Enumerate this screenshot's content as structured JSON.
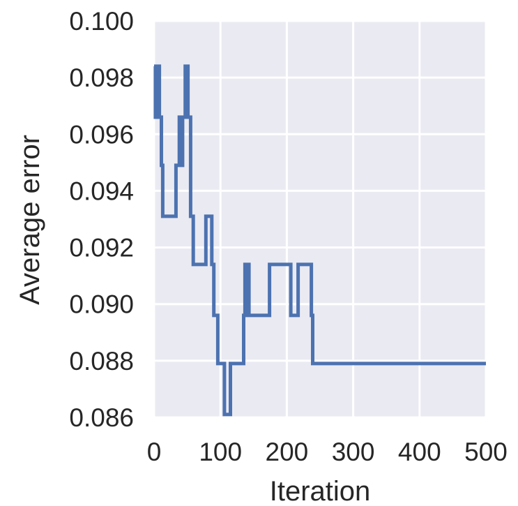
{
  "chart_data": {
    "type": "line",
    "title": "",
    "xlabel": "Iteration",
    "ylabel": "Average error",
    "xlim": [
      0,
      500
    ],
    "ylim": [
      0.086,
      0.1
    ],
    "x_ticks": [
      "0",
      "100",
      "200",
      "300",
      "400",
      "500"
    ],
    "y_ticks": [
      "0.100",
      "0.098",
      "0.096",
      "0.094",
      "0.092",
      "0.090",
      "0.088",
      "0.086"
    ],
    "grid": true,
    "background_color": "#EAEAF2",
    "grid_color": "#FFFFFF",
    "series": [
      {
        "color": "#4C72B0",
        "points": [
          [
            0,
            0.0984
          ],
          [
            2,
            0.0984
          ],
          [
            2,
            0.0966
          ],
          [
            5,
            0.0966
          ],
          [
            5,
            0.0984
          ],
          [
            8,
            0.0984
          ],
          [
            8,
            0.0966
          ],
          [
            11,
            0.0966
          ],
          [
            11,
            0.0949
          ],
          [
            13,
            0.0949
          ],
          [
            13,
            0.0931
          ],
          [
            33,
            0.0931
          ],
          [
            33,
            0.0949
          ],
          [
            38,
            0.0949
          ],
          [
            38,
            0.0966
          ],
          [
            40,
            0.0966
          ],
          [
            40,
            0.0949
          ],
          [
            43,
            0.0949
          ],
          [
            43,
            0.0966
          ],
          [
            47,
            0.0966
          ],
          [
            47,
            0.0984
          ],
          [
            51,
            0.0984
          ],
          [
            51,
            0.0966
          ],
          [
            55,
            0.0966
          ],
          [
            55,
            0.0931
          ],
          [
            59,
            0.0931
          ],
          [
            59,
            0.0914
          ],
          [
            78,
            0.0914
          ],
          [
            78,
            0.0931
          ],
          [
            87,
            0.0931
          ],
          [
            87,
            0.0914
          ],
          [
            90,
            0.0914
          ],
          [
            90,
            0.0896
          ],
          [
            96,
            0.0896
          ],
          [
            96,
            0.0879
          ],
          [
            106,
            0.0879
          ],
          [
            106,
            0.0861
          ],
          [
            115,
            0.0861
          ],
          [
            115,
            0.0879
          ],
          [
            135,
            0.0879
          ],
          [
            135,
            0.0896
          ],
          [
            137,
            0.0896
          ],
          [
            137,
            0.0914
          ],
          [
            139,
            0.0914
          ],
          [
            139,
            0.0896
          ],
          [
            141,
            0.0896
          ],
          [
            141,
            0.0914
          ],
          [
            143,
            0.0914
          ],
          [
            143,
            0.0896
          ],
          [
            174,
            0.0896
          ],
          [
            174,
            0.0914
          ],
          [
            206,
            0.0914
          ],
          [
            206,
            0.0896
          ],
          [
            217,
            0.0896
          ],
          [
            217,
            0.0914
          ],
          [
            237,
            0.0914
          ],
          [
            237,
            0.0896
          ],
          [
            239,
            0.0896
          ],
          [
            239,
            0.0879
          ],
          [
            500,
            0.0879
          ]
        ]
      }
    ]
  }
}
